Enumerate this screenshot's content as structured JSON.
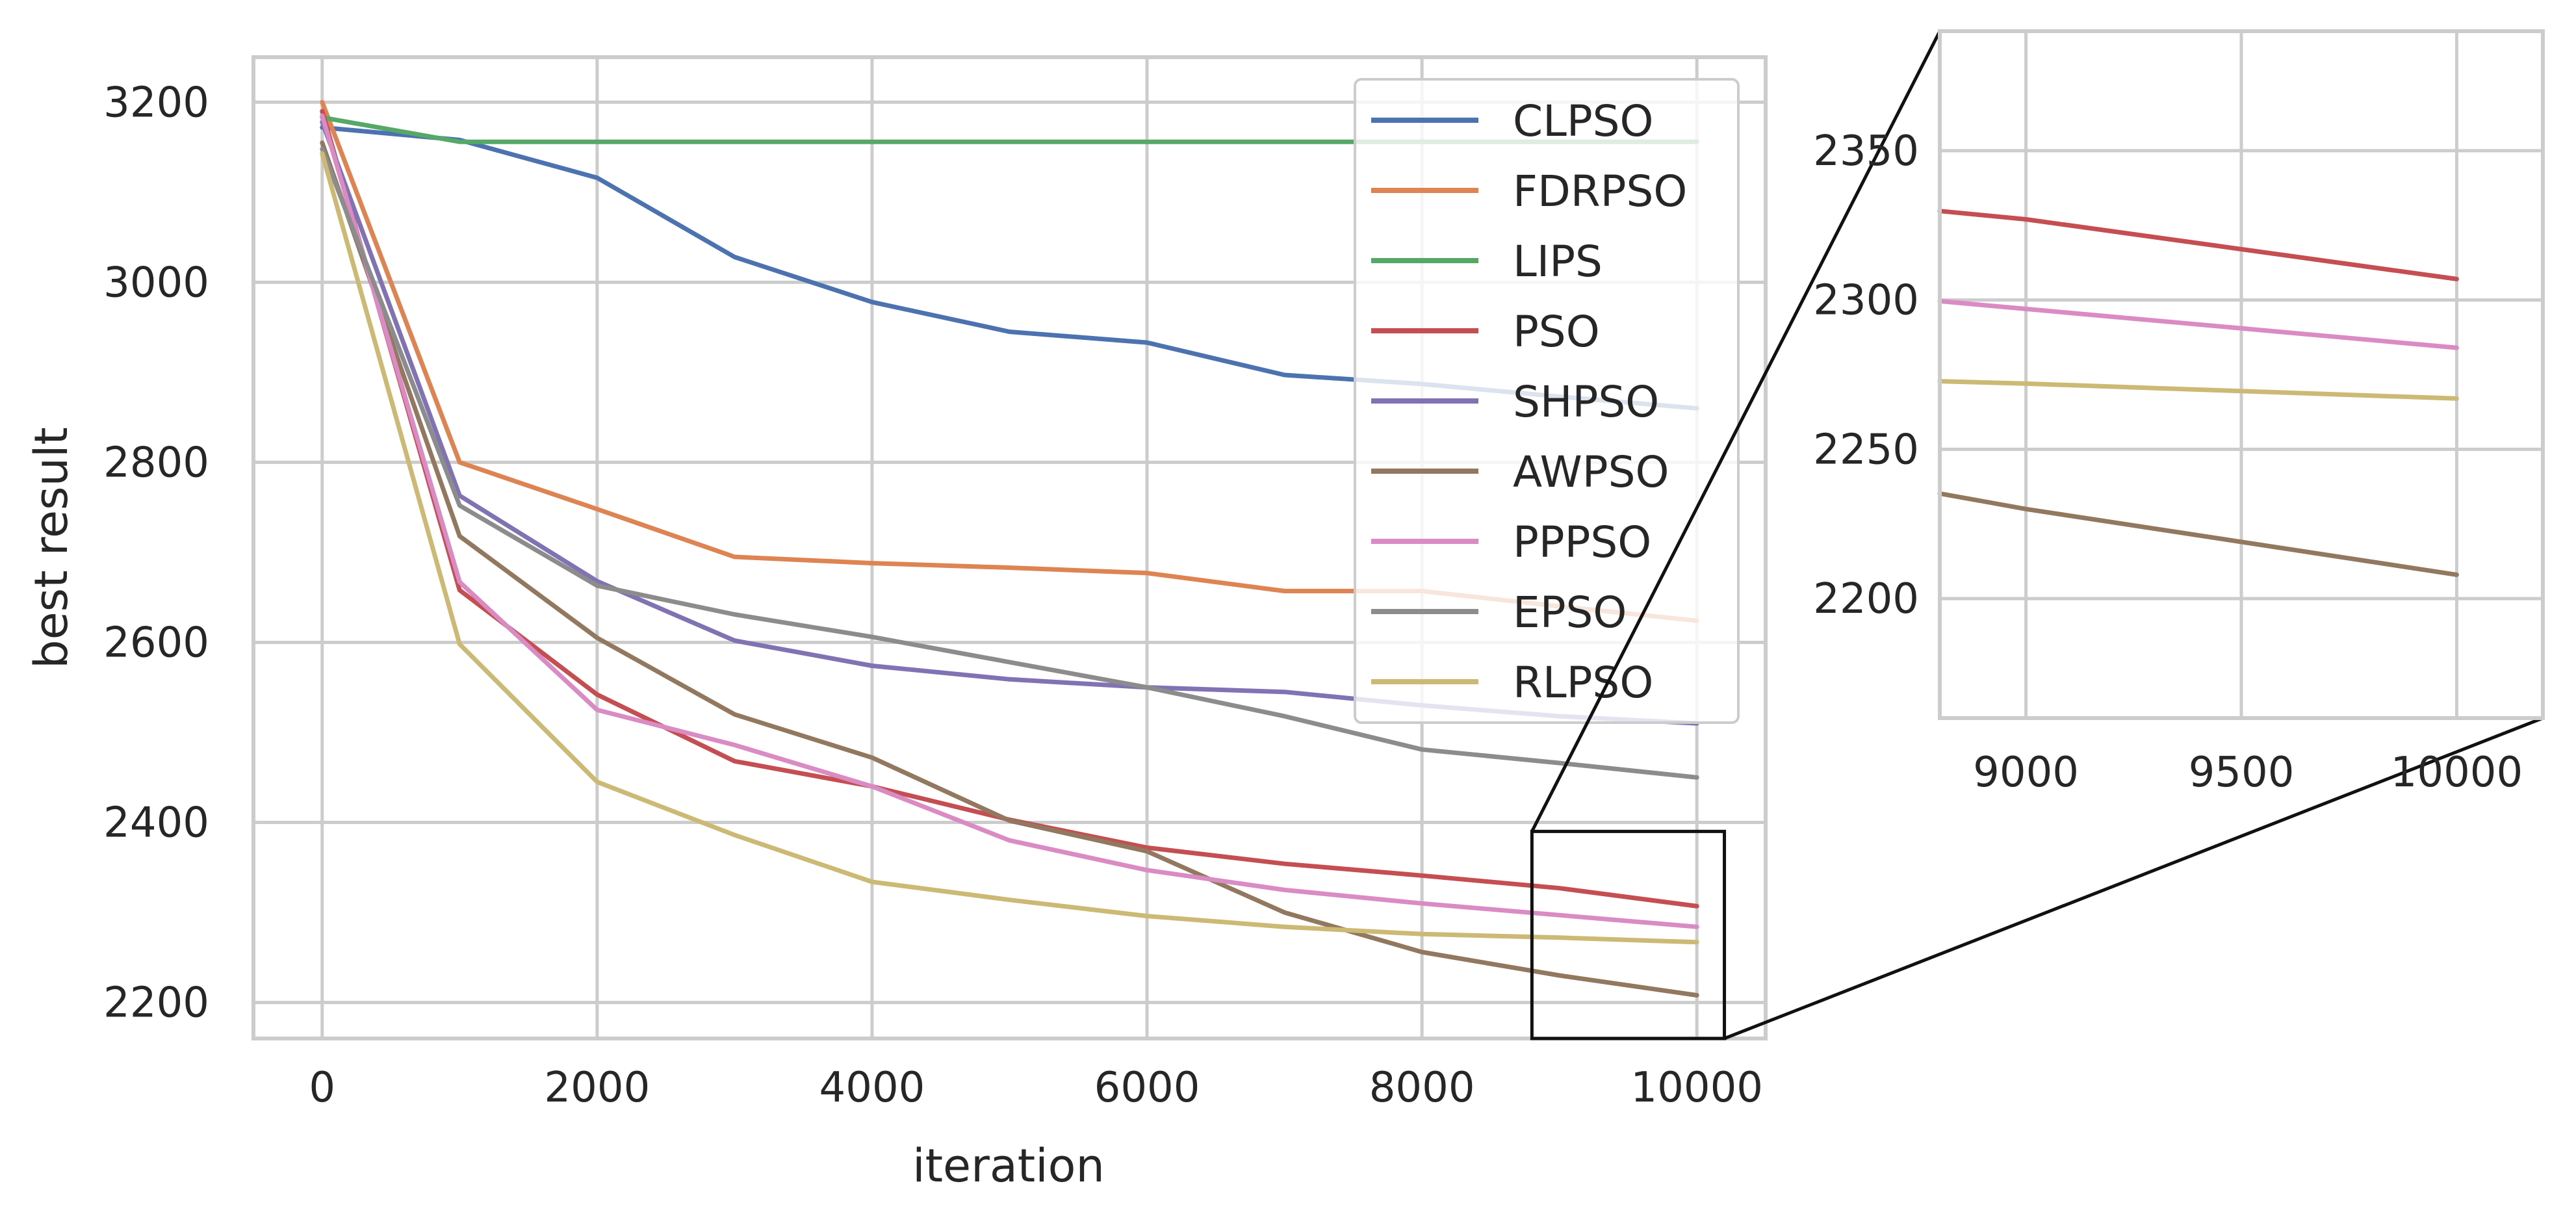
{
  "chart_data": {
    "type": "line",
    "xlabel": "iteration",
    "ylabel": "best result",
    "xlim": [
      -500,
      10500
    ],
    "ylim": [
      2160,
      3250
    ],
    "xticks": [
      "0",
      "2000",
      "4000",
      "6000",
      "8000",
      "10000"
    ],
    "yticks": [
      "2200",
      "2400",
      "2600",
      "2800",
      "3000",
      "3200"
    ],
    "legend_position": "top-right",
    "x": [
      0,
      1000,
      2000,
      3000,
      4000,
      5000,
      6000,
      7000,
      8000,
      9000,
      10000
    ],
    "series": [
      {
        "name": "CLPSO",
        "color": "#4c72b0",
        "values": [
          3172,
          3158,
          3116,
          3028,
          2978,
          2945,
          2933,
          2897,
          2887,
          2873,
          2860
        ]
      },
      {
        "name": "FDRPSO",
        "color": "#dd8452",
        "values": [
          3200,
          2800,
          2748,
          2695,
          2688,
          2683,
          2677,
          2657,
          2657,
          2640,
          2624
        ]
      },
      {
        "name": "LIPS",
        "color": "#55a868",
        "values": [
          3183,
          3156,
          3156,
          3156,
          3156,
          3156,
          3156,
          3156,
          3156,
          3156,
          3156
        ]
      },
      {
        "name": "PSO",
        "color": "#c44e52",
        "values": [
          3190,
          2658,
          2542,
          2468,
          2440,
          2403,
          2372,
          2354,
          2341,
          2327,
          2307
        ]
      },
      {
        "name": "SHPSO",
        "color": "#8172b3",
        "values": [
          3178,
          2763,
          2668,
          2602,
          2574,
          2559,
          2550,
          2545,
          2530,
          2518,
          2510
        ]
      },
      {
        "name": "AWPSO",
        "color": "#937860",
        "values": [
          3155,
          2718,
          2605,
          2520,
          2472,
          2402,
          2368,
          2300,
          2256,
          2230,
          2208
        ]
      },
      {
        "name": "PPPSO",
        "color": "#da8bc3",
        "values": [
          3185,
          2667,
          2525,
          2486,
          2440,
          2380,
          2347,
          2325,
          2310,
          2297,
          2284
        ]
      },
      {
        "name": "EPSO",
        "color": "#8c8c8c",
        "values": [
          3148,
          2752,
          2663,
          2631,
          2606,
          2578,
          2550,
          2518,
          2481,
          2466,
          2450
        ]
      },
      {
        "name": "RLPSO",
        "color": "#ccb974",
        "values": [
          3143,
          2598,
          2445,
          2386,
          2334,
          2314,
          2296,
          2284,
          2276,
          2272,
          2267
        ]
      }
    ],
    "inset": {
      "xlim": [
        8800,
        10200
      ],
      "ylim": [
        2160,
        2390
      ],
      "xticks": [
        "9000",
        "9500",
        "10000"
      ],
      "yticks": [
        "2200",
        "2250",
        "2300",
        "2350"
      ]
    }
  }
}
